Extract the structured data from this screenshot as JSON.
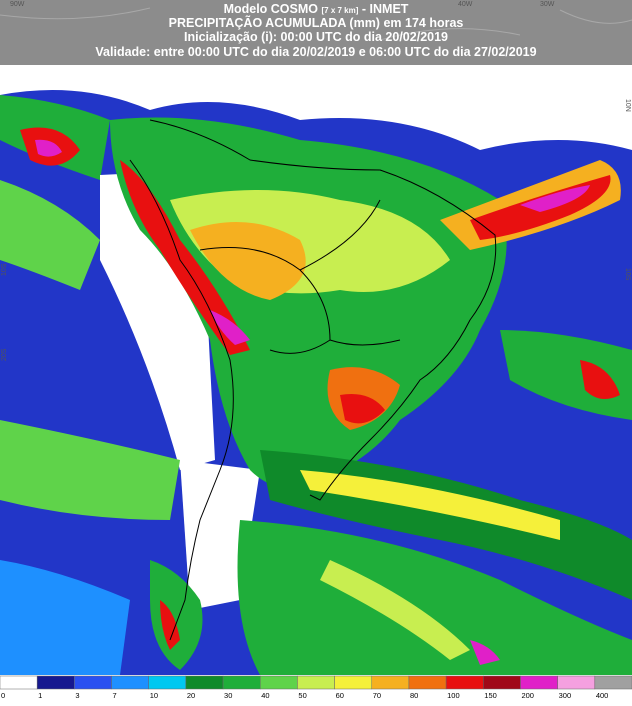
{
  "header": {
    "title_prefix": "Modelo COSMO",
    "resolution": "[7 x 7 km]",
    "title_suffix": "- INMET",
    "line2": "PRECIPITAÇÃO ACUMULADA (mm) em 174 horas",
    "line3": "Inicialização (i): 00:00 UTC do dia 20/02/2019",
    "line4": "Validade: entre 00:00 UTC do dia 20/02/2019 e 06:00 UTC do dia 27/02/2019"
  },
  "grid_labels": {
    "top": [
      "90W",
      "40W",
      "30W"
    ],
    "left": [
      "10S",
      "20S"
    ],
    "right": [
      "10N",
      "10S"
    ]
  },
  "legend": {
    "levels": [
      0,
      1,
      3,
      7,
      10,
      20,
      30,
      40,
      50,
      60,
      70,
      80,
      100,
      150,
      200,
      300,
      400
    ],
    "colors": [
      "#ffffff",
      "#16188f",
      "#2a50f0",
      "#1e90ff",
      "#00c8f0",
      "#0f8a2a",
      "#1fae3a",
      "#5fd34a",
      "#c8ee50",
      "#f5f03a",
      "#f5b020",
      "#f07010",
      "#e81010",
      "#a00818",
      "#e020c8",
      "#f5a0e0",
      "#a0a0a0"
    ]
  }
}
